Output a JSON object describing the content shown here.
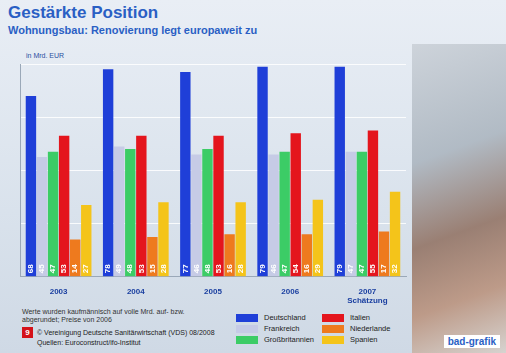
{
  "chart_data": {
    "type": "bar",
    "title": "Gestärkte Position",
    "subtitle": "Wohnungsbau: Renovierung legt europaweit zu",
    "ylabel": "in Mrd. EUR",
    "categories": [
      "2003",
      "2004",
      "2005",
      "2006",
      "2007 Schätzung"
    ],
    "series": [
      {
        "name": "Deutschland",
        "color": "#1f3fd8",
        "values": [
          68,
          78,
          77,
          79,
          79
        ]
      },
      {
        "name": "Frankreich",
        "color": "#c6cbe6",
        "values": [
          45,
          49,
          46,
          46,
          47
        ]
      },
      {
        "name": "Großbritannien",
        "color": "#3ccc66",
        "values": [
          47,
          48,
          48,
          47,
          47
        ]
      },
      {
        "name": "Italien",
        "color": "#e4151d",
        "values": [
          53,
          53,
          53,
          54,
          55
        ]
      },
      {
        "name": "Niederlande",
        "color": "#ee7a1e",
        "values": [
          14,
          15,
          16,
          16,
          17
        ]
      },
      {
        "name": "Spanien",
        "color": "#f4c41a",
        "values": [
          27,
          28,
          28,
          29,
          32
        ]
      }
    ],
    "ylim": [
      0,
      80
    ],
    "yticks": [
      0,
      20,
      40,
      60,
      80
    ],
    "grid": true,
    "tick_labels": "x",
    "data_labels": true,
    "legend": "bottom",
    "note": "Werte wurden kaufmännisch auf volle Mrd. auf- bzw. abgerundet; Preise von 2006",
    "page_number": "9",
    "copyright": "© Vereinigung Deutsche Sanitärwirtschaft (VDS) 08/2008",
    "source": "Quellen: Euroconstruct/ifo-Institut",
    "logo": "bad-grafik"
  }
}
